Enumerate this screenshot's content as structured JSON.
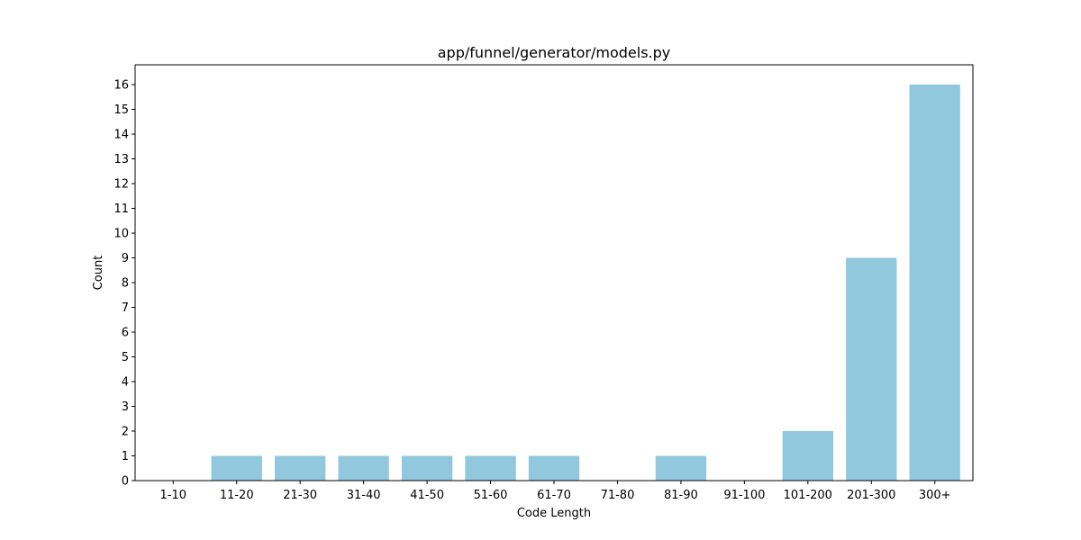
{
  "chart_data": {
    "type": "bar",
    "title": "app/funnel/generator/models.py",
    "xlabel": "Code Length",
    "ylabel": "Count",
    "categories": [
      "1-10",
      "11-20",
      "21-30",
      "31-40",
      "41-50",
      "51-60",
      "61-70",
      "71-80",
      "81-90",
      "91-100",
      "101-200",
      "201-300",
      "300+"
    ],
    "values": [
      0,
      1,
      1,
      1,
      1,
      1,
      1,
      0,
      1,
      0,
      2,
      9,
      16
    ],
    "ylim": [
      0,
      16.8
    ],
    "yticks": [
      0,
      1,
      2,
      3,
      4,
      5,
      6,
      7,
      8,
      9,
      10,
      11,
      12,
      13,
      14,
      15,
      16
    ],
    "grid": false,
    "bar_color": "#92c8de"
  }
}
